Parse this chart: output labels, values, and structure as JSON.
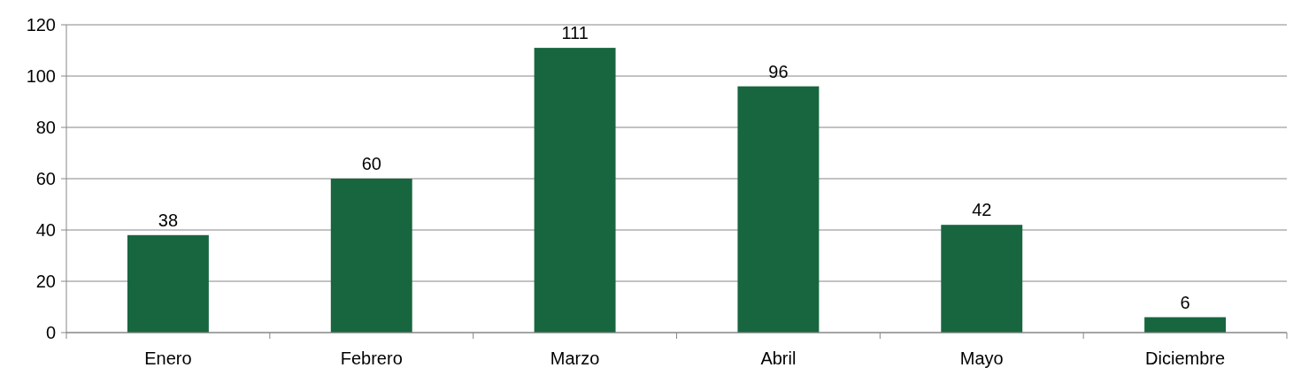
{
  "chart_data": {
    "type": "bar",
    "categories": [
      "Enero",
      "Febrero",
      "Marzo",
      "Abril",
      "Mayo",
      "Diciembre"
    ],
    "values": [
      38,
      60,
      111,
      96,
      42,
      6
    ],
    "color": "#17663f",
    "ylim": [
      0,
      120
    ],
    "yticks": [
      0,
      20,
      40,
      60,
      80,
      100,
      120
    ],
    "grid": "y",
    "data_labels": true
  }
}
